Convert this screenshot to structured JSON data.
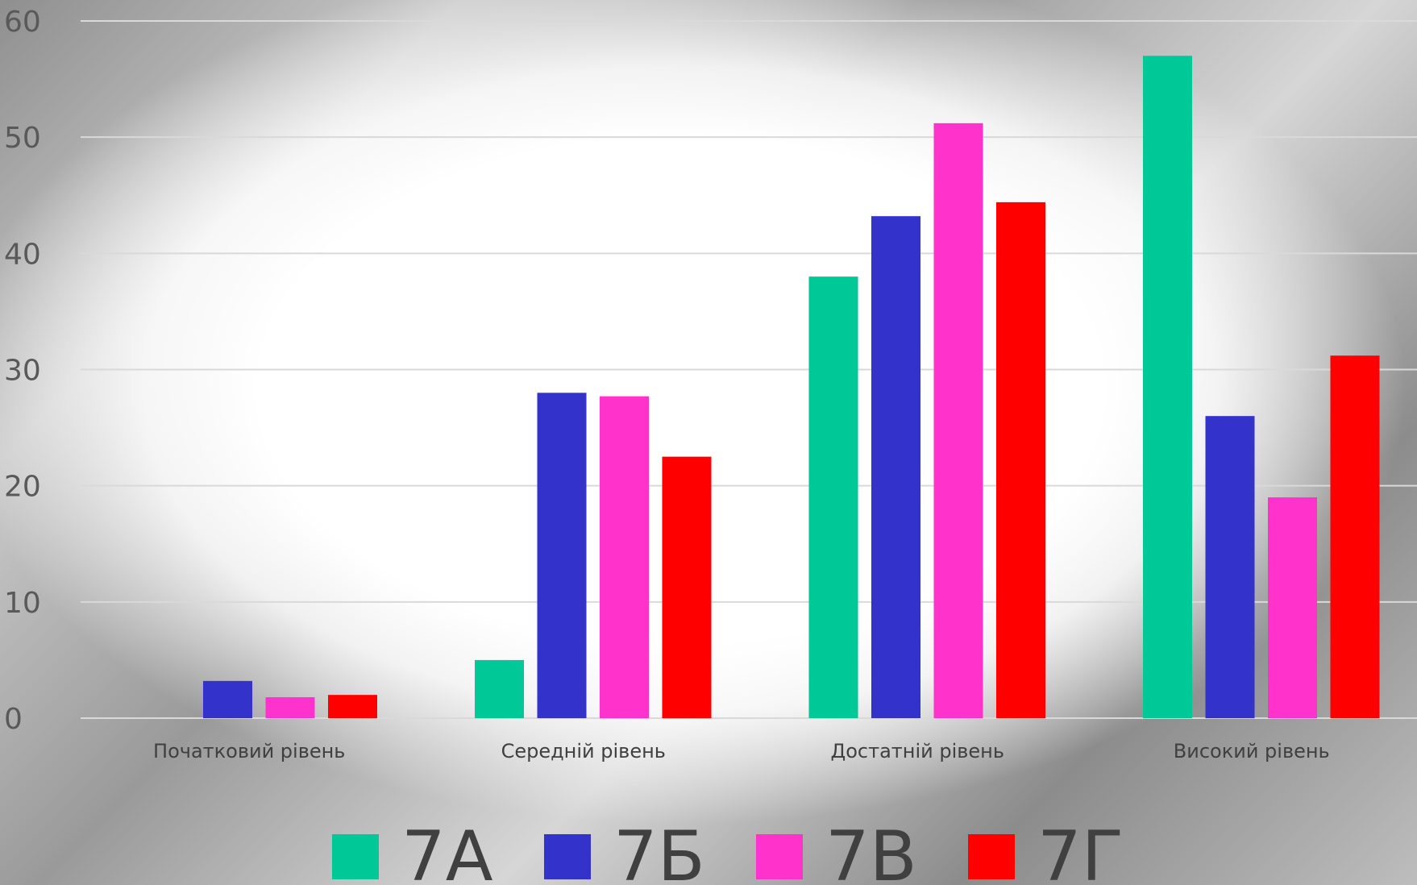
{
  "chart_data": {
    "type": "bar",
    "categories": [
      "Початковий рівень",
      "Середній рівень",
      "Достатній рівень",
      "Високий рівень"
    ],
    "series": [
      {
        "name": "7А",
        "color": "#00c896",
        "values": [
          0,
          5,
          38,
          57
        ]
      },
      {
        "name": "7Б",
        "color": "#3333cc",
        "values": [
          3.2,
          28,
          43.2,
          26
        ]
      },
      {
        "name": "7В",
        "color": "#ff33cc",
        "values": [
          1.8,
          27.7,
          51.2,
          19
        ]
      },
      {
        "name": "7Г",
        "color": "#ff0000",
        "values": [
          2,
          22.5,
          44.4,
          31.2
        ]
      }
    ],
    "yticks": [
      "0",
      "10",
      "20",
      "30",
      "40",
      "50",
      "60"
    ],
    "ylim": [
      0,
      60
    ],
    "grid": true,
    "legend_position": "bottom"
  }
}
